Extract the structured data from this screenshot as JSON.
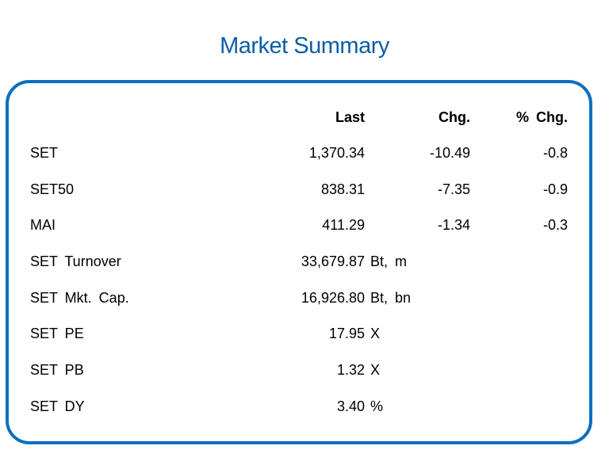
{
  "title": "Market Summary",
  "headers": {
    "last": "Last",
    "chg": "Chg.",
    "pct_chg": "% Chg."
  },
  "index_rows": [
    {
      "name": "SET",
      "last": "1,370.34",
      "chg": "-10.49",
      "pct_chg": "-0.8"
    },
    {
      "name": "SET50",
      "last": "838.31",
      "chg": "-7.35",
      "pct_chg": "-0.9"
    },
    {
      "name": "MAI",
      "last": "411.29",
      "chg": "-1.34",
      "pct_chg": "-0.3"
    }
  ],
  "stat_rows": [
    {
      "name": "SET Turnover",
      "value": "33,679.87",
      "unit": "Bt, m"
    },
    {
      "name": "SET Mkt. Cap.",
      "value": "16,926.80",
      "unit": "Bt, bn"
    },
    {
      "name": "SET PE",
      "value": "17.95",
      "unit": "X"
    },
    {
      "name": "SET PB",
      "value": "1.32",
      "unit": "X"
    },
    {
      "name": "SET DY",
      "value": "3.40",
      "unit": "%"
    }
  ],
  "colors": {
    "title": "#0a5ea8",
    "border": "#0a6fc2"
  }
}
